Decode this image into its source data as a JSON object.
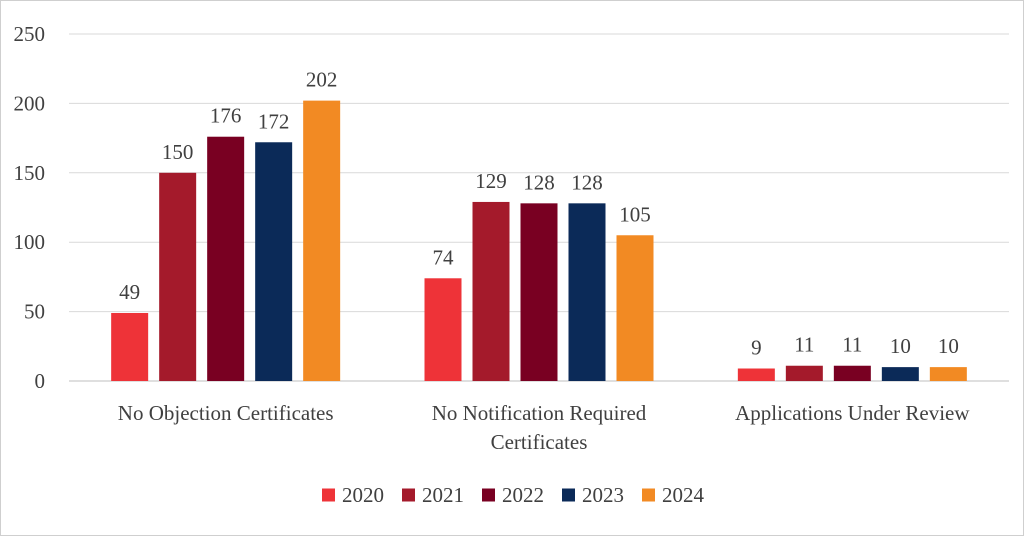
{
  "chart_data": {
    "type": "bar",
    "categories": [
      [
        "No Objection Certificates"
      ],
      [
        "No Notification Required",
        "Certificates"
      ],
      [
        "Applications Under Review"
      ]
    ],
    "series": [
      {
        "name": "2020",
        "color": "#EE3338",
        "values": [
          49,
          74,
          9
        ]
      },
      {
        "name": "2021",
        "color": "#A41A2B",
        "values": [
          150,
          129,
          11
        ]
      },
      {
        "name": "2022",
        "color": "#790022",
        "values": [
          176,
          128,
          11
        ]
      },
      {
        "name": "2023",
        "color": "#0B2A58",
        "values": [
          172,
          128,
          10
        ]
      },
      {
        "name": "2024",
        "color": "#F28A23",
        "values": [
          202,
          105,
          10
        ]
      }
    ],
    "ylim": [
      0,
      250
    ],
    "yticks": [
      0,
      50,
      100,
      150,
      200,
      250
    ],
    "grid": true,
    "data_labels": true,
    "legend_position": "bottom"
  }
}
